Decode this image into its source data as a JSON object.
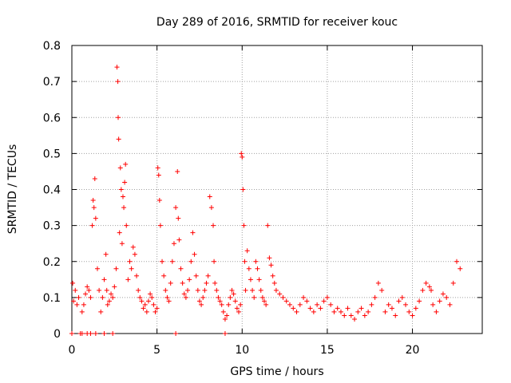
{
  "chart_data": {
    "type": "scatter",
    "title": "Day 289 of 2016, SRMTID for receiver kouc",
    "xlabel": "GPS time / hours",
    "ylabel": "SRMTID / TECUs",
    "xlim": [
      0,
      24.1
    ],
    "ylim": [
      0,
      0.8
    ],
    "xticks": [
      {
        "value": 0,
        "label": "0"
      },
      {
        "value": 5,
        "label": "5"
      },
      {
        "value": 10,
        "label": "10"
      },
      {
        "value": 15,
        "label": "15"
      },
      {
        "value": 20,
        "label": "20"
      }
    ],
    "yticks": [
      {
        "value": 0,
        "label": "0"
      },
      {
        "value": 0.1,
        "label": "0.1"
      },
      {
        "value": 0.2,
        "label": "0.2"
      },
      {
        "value": 0.3,
        "label": "0.3"
      },
      {
        "value": 0.4,
        "label": "0.4"
      },
      {
        "value": 0.5,
        "label": "0.5"
      },
      {
        "value": 0.6,
        "label": "0.6"
      },
      {
        "value": 0.7,
        "label": "0.7"
      },
      {
        "value": 0.8,
        "label": "0.8"
      }
    ],
    "grid": true,
    "marker": "+",
    "color": "#ff0000",
    "series": [
      {
        "name": "SRMTID",
        "x": [
          0.05,
          0.1,
          0.2,
          0.3,
          0.4,
          0.5,
          0.6,
          0.7,
          0.8,
          0.9,
          1.0,
          1.1,
          1.2,
          1.25,
          1.3,
          1.35,
          1.4,
          1.5,
          1.6,
          1.7,
          1.8,
          1.9,
          2.0,
          2.05,
          2.1,
          2.2,
          2.3,
          2.4,
          2.5,
          2.6,
          2.65,
          2.7,
          2.72,
          2.75,
          2.8,
          2.85,
          2.9,
          2.95,
          3.0,
          3.05,
          3.1,
          3.15,
          3.2,
          3.3,
          3.4,
          3.5,
          3.6,
          3.7,
          3.8,
          3.9,
          4.0,
          4.1,
          4.2,
          4.3,
          4.4,
          4.5,
          4.6,
          4.7,
          4.8,
          4.9,
          5.0,
          5.05,
          5.1,
          5.15,
          5.2,
          5.3,
          5.4,
          5.5,
          5.6,
          5.7,
          5.8,
          5.9,
          6.0,
          6.1,
          6.2,
          6.25,
          6.3,
          6.4,
          6.5,
          6.6,
          6.7,
          6.8,
          6.9,
          7.0,
          7.1,
          7.2,
          7.3,
          7.4,
          7.5,
          7.6,
          7.7,
          7.8,
          7.9,
          8.0,
          8.1,
          8.2,
          8.3,
          8.35,
          8.4,
          8.5,
          8.6,
          8.7,
          8.8,
          8.9,
          9.0,
          9.1,
          9.2,
          9.3,
          9.4,
          9.5,
          9.6,
          9.7,
          9.8,
          9.9,
          9.95,
          10.0,
          10.05,
          10.1,
          10.15,
          10.2,
          10.3,
          10.4,
          10.5,
          10.6,
          10.7,
          10.8,
          10.9,
          11.0,
          11.1,
          11.2,
          11.3,
          11.4,
          11.5,
          11.6,
          11.7,
          11.8,
          11.9,
          12.0,
          12.2,
          12.4,
          12.6,
          12.8,
          13.0,
          13.2,
          13.4,
          13.6,
          13.8,
          14.0,
          14.2,
          14.4,
          14.6,
          14.8,
          15.0,
          15.2,
          15.4,
          15.6,
          15.8,
          16.0,
          16.2,
          16.4,
          16.6,
          16.8,
          17.0,
          17.2,
          17.4,
          17.6,
          17.8,
          18.0,
          18.2,
          18.4,
          18.6,
          18.8,
          19.0,
          19.2,
          19.4,
          19.6,
          19.8,
          20.0,
          20.2,
          20.4,
          20.6,
          20.8,
          21.0,
          21.1,
          21.2,
          21.4,
          21.6,
          21.8,
          22.0,
          22.2,
          22.4,
          22.6,
          22.8,
          0.0,
          0.6,
          0.9,
          1.1,
          1.4,
          1.9,
          2.4,
          6.1,
          9.0
        ],
        "y": [
          0.14,
          0.09,
          0.12,
          0.08,
          0.1,
          0.0,
          0.06,
          0.08,
          0.11,
          0.13,
          0.12,
          0.1,
          0.3,
          0.37,
          0.35,
          0.43,
          0.32,
          0.18,
          0.12,
          0.06,
          0.1,
          0.15,
          0.22,
          0.12,
          0.08,
          0.09,
          0.11,
          0.1,
          0.13,
          0.18,
          0.74,
          0.7,
          0.6,
          0.54,
          0.28,
          0.46,
          0.4,
          0.25,
          0.38,
          0.35,
          0.42,
          0.47,
          0.3,
          0.15,
          0.2,
          0.18,
          0.24,
          0.22,
          0.16,
          0.12,
          0.1,
          0.09,
          0.07,
          0.08,
          0.06,
          0.09,
          0.11,
          0.1,
          0.08,
          0.06,
          0.07,
          0.46,
          0.44,
          0.37,
          0.3,
          0.2,
          0.16,
          0.12,
          0.1,
          0.09,
          0.14,
          0.2,
          0.25,
          0.35,
          0.45,
          0.32,
          0.26,
          0.18,
          0.14,
          0.11,
          0.1,
          0.12,
          0.15,
          0.2,
          0.28,
          0.22,
          0.16,
          0.12,
          0.09,
          0.08,
          0.1,
          0.12,
          0.14,
          0.16,
          0.38,
          0.35,
          0.3,
          0.2,
          0.14,
          0.12,
          0.1,
          0.09,
          0.08,
          0.06,
          0.04,
          0.05,
          0.08,
          0.1,
          0.12,
          0.11,
          0.09,
          0.07,
          0.06,
          0.08,
          0.5,
          0.49,
          0.4,
          0.3,
          0.2,
          0.12,
          0.23,
          0.18,
          0.15,
          0.12,
          0.1,
          0.2,
          0.18,
          0.15,
          0.12,
          0.1,
          0.09,
          0.08,
          0.3,
          0.21,
          0.19,
          0.16,
          0.14,
          0.12,
          0.11,
          0.1,
          0.09,
          0.08,
          0.07,
          0.06,
          0.08,
          0.1,
          0.09,
          0.07,
          0.06,
          0.08,
          0.07,
          0.09,
          0.1,
          0.08,
          0.06,
          0.07,
          0.06,
          0.05,
          0.07,
          0.05,
          0.04,
          0.06,
          0.07,
          0.05,
          0.06,
          0.08,
          0.1,
          0.14,
          0.12,
          0.06,
          0.08,
          0.07,
          0.05,
          0.09,
          0.1,
          0.08,
          0.06,
          0.05,
          0.07,
          0.09,
          0.12,
          0.14,
          0.13,
          0.12,
          0.08,
          0.06,
          0.09,
          0.11,
          0.1,
          0.08,
          0.14,
          0.2,
          0.18,
          0.0,
          0.0,
          0.0,
          0.0,
          0.0,
          0.0,
          0.0,
          0.0,
          0.0
        ]
      }
    ]
  }
}
